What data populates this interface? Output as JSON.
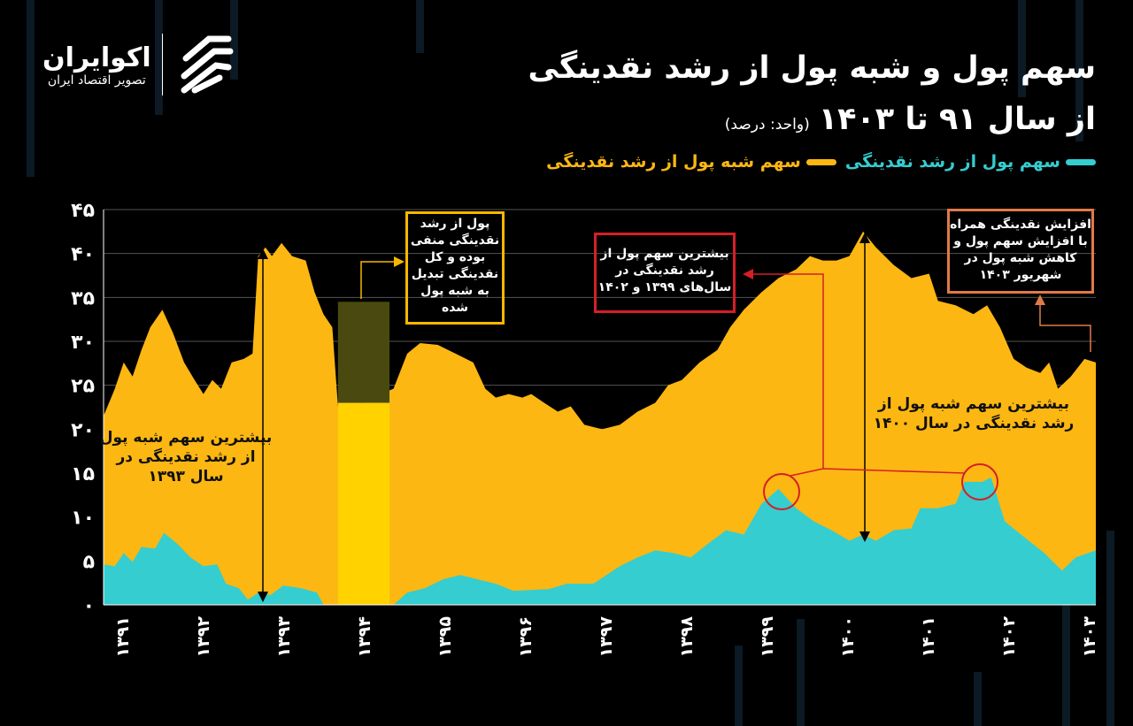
{
  "brand": {
    "name": "اکوایران",
    "tagline": "تصویر اقتصاد ایران"
  },
  "header": {
    "title_line1": "سهم پول و شبه پول از رشد نقدینگی",
    "title_line2": "از سال ۹۱ تا ۱۴۰۳",
    "unit": "(واحد: درصد)"
  },
  "colors": {
    "money": "#35cdd0",
    "quasi_money": "#fcb712",
    "highlight": "#ffd200",
    "highlight_dark": "#4a4a10",
    "background": "#000000"
  },
  "annotations": {
    "negative_money": "پول از رشد نقدینگی منفی بوده و کل نقدینگی تبدیل به شبه پول شده",
    "max_money": "بیشترین سهم پول از رشد نقدینگی در سال‌های ۱۳۹۹ و ۱۴۰۲",
    "shahrivar_1403": "افزایش نقدینگی همراه با افزایش سهم پول و کاهش شبه پول در شهریور ۱۴۰۳",
    "max_quasi_1393": "بیشترین سهم شبه پول از رشد نقدینگی در سال ۱۳۹۳",
    "max_quasi_1400": "بیشترین سهم شبه پول از رشد نقدینگی در سال ۱۴۰۰"
  },
  "chart_data": {
    "type": "area",
    "stacked": true,
    "title": "سهم پول و شبه پول از رشد نقدینگی از سال ۹۱ تا ۱۴۰۳",
    "ylabel": "(واحد: درصد)",
    "xlim": [
      1390.78,
      1403.1
    ],
    "ylim": [
      0,
      45
    ],
    "grid": true,
    "legend": "top-right",
    "x_ticks": [
      1391,
      1392,
      1393,
      1394,
      1395,
      1396,
      1397,
      1398,
      1399,
      1400,
      1401,
      1402,
      1403
    ],
    "x_tick_labels": [
      "۱۳۹۱",
      "۱۳۹۲",
      "۱۳۹۳",
      "۱۳۹۴",
      "۱۳۹۵",
      "۱۳۹۶",
      "۱۳۹۷",
      "۱۳۹۸",
      "۱۳۹۹",
      "۱۴۰۰",
      "۱۴۰۱",
      "۱۴۰۲",
      "۱۴۰۳"
    ],
    "y_ticks": [
      0,
      5,
      10,
      15,
      20,
      25,
      30,
      35,
      40,
      45
    ],
    "y_tick_labels": [
      "۰",
      "۵",
      "۱۰",
      "۱۵",
      "۲۰",
      "۲۵",
      "۳۰",
      "۳۵",
      "۴۰",
      "۴۵"
    ],
    "highlight_range": [
      1393.69,
      1394.33
    ],
    "series": [
      {
        "name": "سهم پول از رشد نقدینگی",
        "color": "#35cdd0",
        "x": [
          1390.78,
          1390.92,
          1391.03,
          1391.14,
          1391.25,
          1391.42,
          1391.53,
          1391.69,
          1391.86,
          1392.02,
          1392.19,
          1392.3,
          1392.46,
          1392.57,
          1392.74,
          1392.85,
          1393.01,
          1393.23,
          1393.43,
          1393.51,
          1394.38,
          1394.55,
          1394.77,
          1394.99,
          1395.21,
          1395.43,
          1395.65,
          1395.87,
          1396.31,
          1396.53,
          1396.86,
          1397.19,
          1397.41,
          1397.63,
          1397.85,
          1398.07,
          1398.29,
          1398.51,
          1398.73,
          1398.95,
          1399.16,
          1399.38,
          1399.6,
          1399.82,
          1400.04,
          1400.21,
          1400.37,
          1400.59,
          1400.81,
          1400.92,
          1401.14,
          1401.36,
          1401.47,
          1401.69,
          1401.8,
          1401.97,
          1402.24,
          1402.46,
          1402.68,
          1402.85,
          1403.1
        ],
        "y": [
          4.6,
          4.4,
          5.9,
          4.9,
          6.6,
          6.4,
          8.2,
          7,
          5.4,
          4.4,
          4.6,
          2.4,
          1.9,
          0.6,
          1.6,
          1.1,
          2.2,
          1.9,
          1.4,
          0,
          0,
          1.4,
          1.9,
          2.9,
          3.4,
          2.9,
          2.4,
          1.6,
          1.8,
          2.4,
          2.4,
          4.4,
          5.4,
          6.2,
          5.9,
          5.4,
          7,
          8.5,
          8,
          11.5,
          13.2,
          11,
          9.5,
          8.5,
          7.3,
          8,
          7.3,
          8.5,
          8.7,
          11,
          11,
          11.5,
          14,
          14,
          14.5,
          9.5,
          7.5,
          5.9,
          3.9,
          5.4,
          6.2
        ]
      },
      {
        "name": "سهم شبه پول از رشد نقدینگی",
        "color": "#fcb712",
        "x": [
          1390.78,
          1390.92,
          1391.03,
          1391.14,
          1391.25,
          1391.36,
          1391.51,
          1391.64,
          1391.78,
          1391.91,
          1392.02,
          1392.13,
          1392.24,
          1392.37,
          1392.52,
          1392.63,
          1392.7,
          1392.79,
          1392.87,
          1392.99,
          1393.12,
          1393.29,
          1393.4,
          1393.51,
          1393.62,
          1393.69,
          1393.8,
          1394.0,
          1394.22,
          1394.38,
          1394.55,
          1394.71,
          1394.93,
          1395.15,
          1395.37,
          1395.52,
          1395.65,
          1395.81,
          1395.98,
          1396.09,
          1396.25,
          1396.42,
          1396.58,
          1396.75,
          1396.97,
          1397.19,
          1397.41,
          1397.63,
          1397.79,
          1397.96,
          1398.18,
          1398.4,
          1398.56,
          1398.73,
          1398.95,
          1399.16,
          1399.38,
          1399.55,
          1399.71,
          1399.88,
          1400.04,
          1400.21,
          1400.37,
          1400.59,
          1400.81,
          1401.03,
          1401.14,
          1401.36,
          1401.58,
          1401.75,
          1401.91,
          1402.08,
          1402.24,
          1402.41,
          1402.52,
          1402.63,
          1402.79,
          1402.96,
          1403.1
        ],
        "y_stacked_total": [
          21.5,
          24.6,
          27.6,
          26,
          29,
          31.6,
          33.6,
          31,
          27.6,
          25.6,
          24,
          25.6,
          24.6,
          27.6,
          28,
          28.6,
          39.7,
          40.7,
          39.7,
          41.2,
          39.7,
          39.2,
          35.6,
          33.1,
          31.6,
          22.6,
          23,
          22.8,
          24,
          24.6,
          28.6,
          29.8,
          29.6,
          28.6,
          27.6,
          24.6,
          23.6,
          24,
          23.6,
          24,
          23,
          22,
          22.6,
          20.5,
          20,
          20.5,
          22,
          23,
          25,
          25.6,
          27.6,
          29,
          31.6,
          33.6,
          35.6,
          37.2,
          38.2,
          39.7,
          39.2,
          39.2,
          39.7,
          42.5,
          40.7,
          38.7,
          37.2,
          37.7,
          34.6,
          34.1,
          33.1,
          34.1,
          31.6,
          28,
          27,
          26.4,
          27.6,
          24.6,
          26,
          28,
          27.6
        ]
      }
    ]
  }
}
